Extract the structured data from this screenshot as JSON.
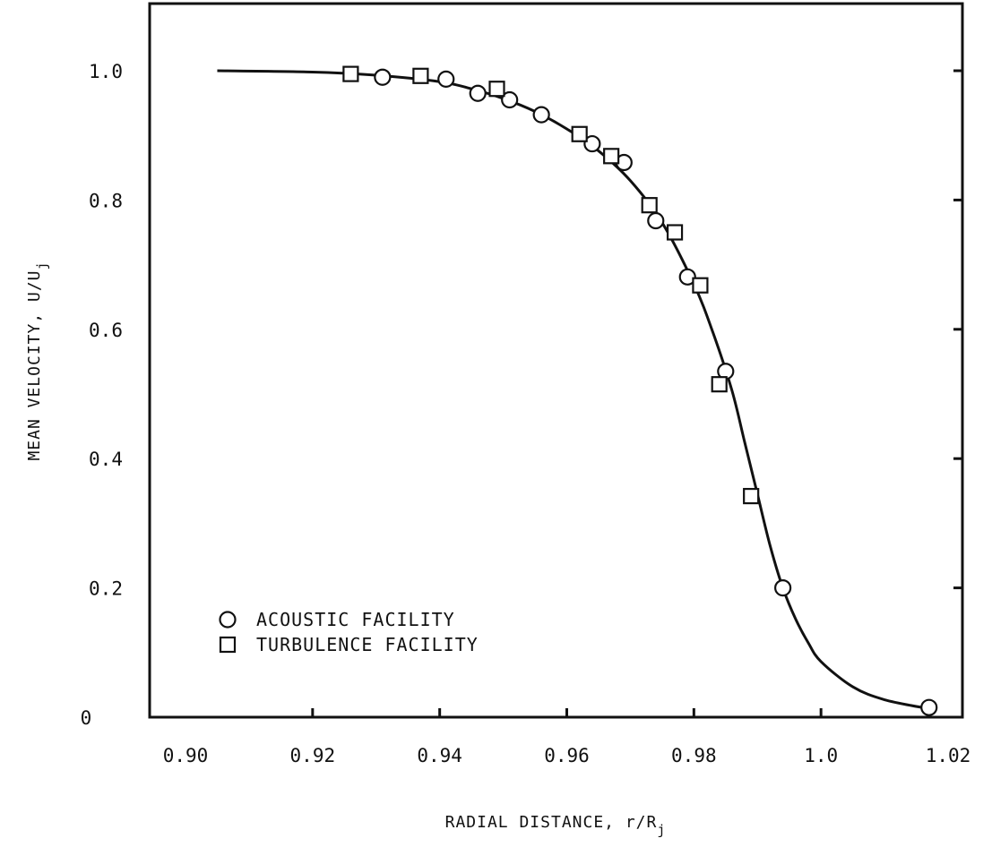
{
  "chart_data": {
    "type": "scatter",
    "title": "",
    "xlabel": "RADIAL DISTANCE, r/R",
    "xlabel_subscript": "j",
    "ylabel": "MEAN VELOCITY, U/U",
    "ylabel_subscript": "j",
    "xlim": [
      0.9,
      1.02
    ],
    "ylim": [
      0,
      1.1
    ],
    "x_ticks": [
      0.9,
      0.92,
      0.94,
      0.96,
      0.98,
      1.0,
      1.02
    ],
    "x_tick_labels": [
      "0.90",
      "0.92",
      "0.94",
      "0.96",
      "0.98",
      "1.0",
      "1.02"
    ],
    "y_ticks": [
      0,
      0.2,
      0.4,
      0.6,
      0.8,
      1.0
    ],
    "y_tick_labels": [
      "0",
      "0.2",
      "0.4",
      "0.6",
      "0.8",
      "1.0"
    ],
    "grid": false,
    "legend_position": "bottom-left",
    "series": [
      {
        "name": "ACOUSTIC FACILITY",
        "marker": "circle",
        "x": [
          0.931,
          0.941,
          0.946,
          0.951,
          0.956,
          0.964,
          0.969,
          0.974,
          0.979,
          0.985,
          0.994,
          1.017
        ],
        "y": [
          0.99,
          0.987,
          0.965,
          0.955,
          0.932,
          0.887,
          0.858,
          0.768,
          0.681,
          0.535,
          0.2,
          0.015
        ]
      },
      {
        "name": "TURBULENCE FACILITY",
        "marker": "square",
        "x": [
          0.926,
          0.937,
          0.949,
          0.962,
          0.967,
          0.973,
          0.977,
          0.981,
          0.984,
          0.989
        ],
        "y": [
          0.995,
          0.992,
          0.972,
          0.902,
          0.868,
          0.792,
          0.75,
          0.668,
          0.515,
          0.342
        ]
      },
      {
        "name": "",
        "marker": "none",
        "line": true,
        "x": [
          0.905,
          0.92,
          0.93,
          0.94,
          0.945,
          0.95,
          0.955,
          0.96,
          0.965,
          0.97,
          0.975,
          0.98,
          0.983,
          0.986,
          0.988,
          0.99,
          0.992,
          0.994,
          0.996,
          0.998,
          1.0,
          1.005,
          1.01,
          1.017
        ],
        "y": [
          1.0,
          0.998,
          0.993,
          0.983,
          0.972,
          0.957,
          0.937,
          0.91,
          0.876,
          0.83,
          0.765,
          0.67,
          0.595,
          0.505,
          0.425,
          0.345,
          0.265,
          0.2,
          0.152,
          0.115,
          0.086,
          0.047,
          0.027,
          0.013
        ]
      }
    ]
  }
}
